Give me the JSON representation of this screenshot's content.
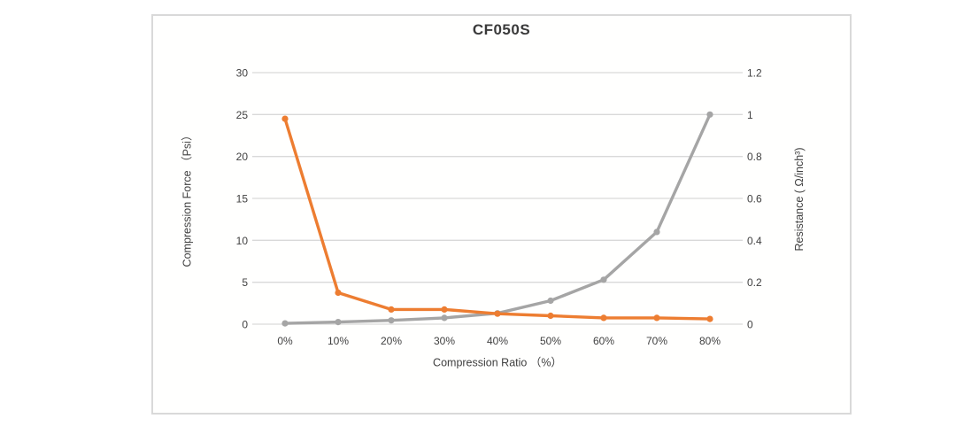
{
  "page": {
    "background": "#ffffff",
    "border_color": "#d9d9d9"
  },
  "chart_data": {
    "type": "line",
    "title": "CF050S",
    "xlabel": "Compression Ratio （%）",
    "ylabel_left": "Compression Force （Psi）",
    "ylabel_right": "Resistance ( Ω/inch³)",
    "categories": [
      "0%",
      "10%",
      "20%",
      "30%",
      "40%",
      "50%",
      "60%",
      "70%",
      "80%"
    ],
    "series": [
      {
        "name": "Compression Force",
        "axis": "left",
        "color": "#A5A5A5",
        "values": [
          0.1,
          0.25,
          0.45,
          0.75,
          1.3,
          2.8,
          5.3,
          11,
          25
        ]
      },
      {
        "name": "Resistance",
        "axis": "right",
        "color": "#ED7D31",
        "values": [
          0.98,
          0.15,
          0.07,
          0.07,
          0.05,
          0.04,
          0.03,
          0.03,
          0.025
        ]
      }
    ],
    "left_axis": {
      "min": 0,
      "max": 30,
      "step": 5,
      "tick_labels": [
        "0",
        "5",
        "10",
        "15",
        "20",
        "25",
        "30"
      ]
    },
    "right_axis": {
      "min": 0,
      "max": 1.2,
      "step": 0.2,
      "tick_labels": [
        "0",
        "0.2",
        "0.4",
        "0.6",
        "0.8",
        "1",
        "1.2"
      ]
    },
    "grid": true,
    "legend": "none",
    "colors": {
      "grid": "#d9d9d9",
      "text": "#404040",
      "title": "#3a3a3a"
    }
  }
}
